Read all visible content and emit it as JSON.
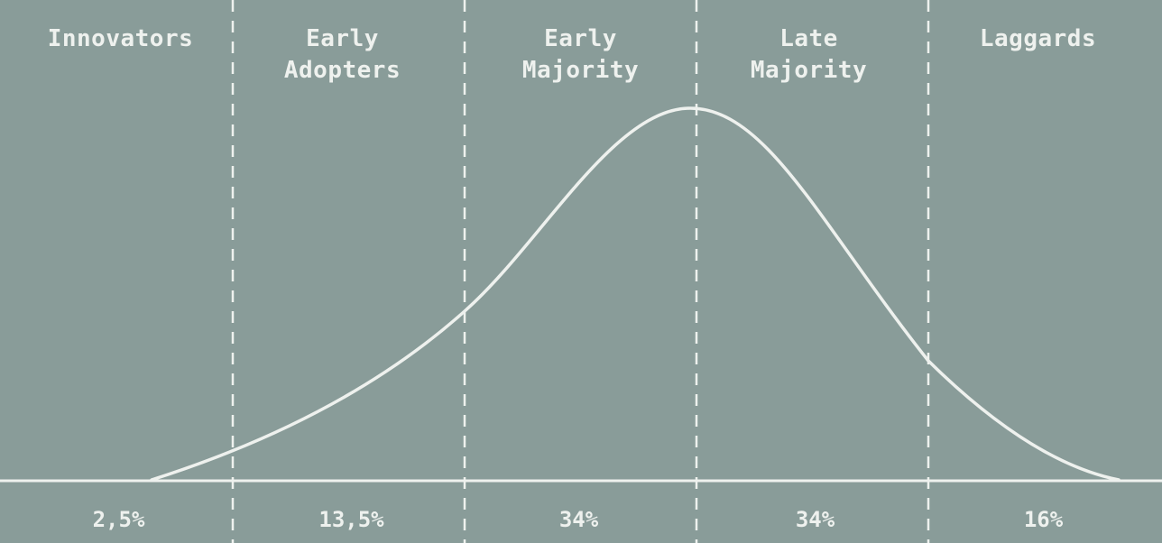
{
  "segments": [
    {
      "line1": "Innovators",
      "line2": "",
      "share": "2,5%"
    },
    {
      "line1": "Early",
      "line2": "Adopters",
      "share": "13,5%"
    },
    {
      "line1": "Early",
      "line2": "Majority",
      "share": "34%"
    },
    {
      "line1": "Late",
      "line2": "Majority",
      "share": "34%"
    },
    {
      "line1": "Laggards",
      "line2": "",
      "share": "16%"
    }
  ],
  "colors": {
    "background": "#899c99",
    "foreground": "#eef1ee"
  }
}
